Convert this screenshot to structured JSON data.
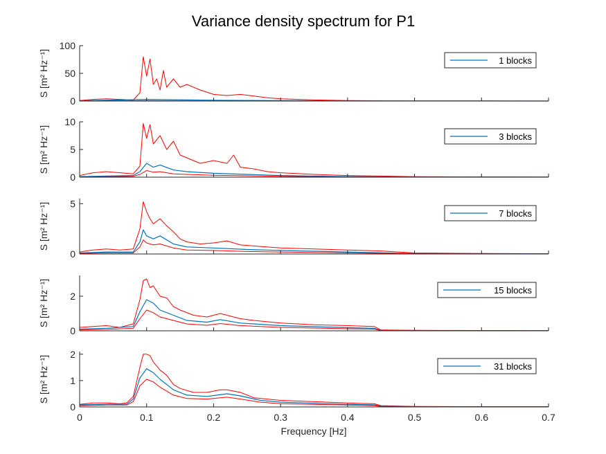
{
  "figure": {
    "title": "Variance density spectrum for P1",
    "xlabel": "Frequency [Hz]"
  },
  "colors": {
    "ci": "#ff0000",
    "mean": "#0072bd",
    "axis": "#262626",
    "background": "#ffffff"
  },
  "chart_data": [
    {
      "type": "line",
      "ylabel": "S [m² Hz⁻¹]",
      "legend": "1 blocks",
      "legend_position": "top-right",
      "xlim": [
        0,
        0.7
      ],
      "ylim": [
        0,
        100
      ],
      "yticks": [
        0,
        50,
        100
      ],
      "xticks": [
        0,
        0.1,
        0.2,
        0.3,
        0.4,
        0.5,
        0.6,
        0.7
      ],
      "xtick_labels_shown": false,
      "series": [
        {
          "role": "upper-ci",
          "color": "#ff0000",
          "x": [
            0,
            0.02,
            0.04,
            0.06,
            0.08,
            0.09,
            0.095,
            0.1,
            0.105,
            0.11,
            0.115,
            0.12,
            0.125,
            0.13,
            0.14,
            0.15,
            0.16,
            0.18,
            0.2,
            0.22,
            0.24,
            0.26,
            0.28,
            0.3,
            0.35,
            0.4,
            0.45,
            0.5,
            0.6,
            0.7
          ],
          "y": [
            1,
            3,
            4,
            3,
            2,
            15,
            80,
            45,
            76,
            30,
            40,
            20,
            55,
            25,
            40,
            25,
            30,
            20,
            12,
            10,
            12,
            9,
            6,
            4,
            2,
            1,
            0.5,
            0.3,
            0.2,
            0.1
          ]
        },
        {
          "role": "mean",
          "color": "#0072bd",
          "x": [
            0,
            0.1,
            0.2,
            0.3,
            0.4,
            0.5,
            0.6,
            0.7
          ],
          "y": [
            0.5,
            3,
            1.5,
            0.8,
            0.4,
            0.2,
            0.1,
            0.05
          ]
        },
        {
          "role": "lower-ci",
          "color": "#ff0000",
          "x": [
            0,
            0.1,
            0.2,
            0.3,
            0.4,
            0.5,
            0.6,
            0.7
          ],
          "y": [
            0.2,
            0.6,
            0.3,
            0.2,
            0.1,
            0.05,
            0.02,
            0.01
          ]
        }
      ]
    },
    {
      "type": "line",
      "ylabel": "S [m² Hz⁻¹]",
      "legend": "3 blocks",
      "legend_position": "top-right",
      "xlim": [
        0,
        0.7
      ],
      "ylim": [
        0,
        10
      ],
      "yticks": [
        0,
        5,
        10
      ],
      "xticks": [
        0,
        0.1,
        0.2,
        0.3,
        0.4,
        0.5,
        0.6,
        0.7
      ],
      "xtick_labels_shown": false,
      "series": [
        {
          "role": "upper-ci",
          "color": "#ff0000",
          "x": [
            0,
            0.02,
            0.04,
            0.06,
            0.08,
            0.09,
            0.095,
            0.1,
            0.105,
            0.11,
            0.12,
            0.13,
            0.14,
            0.15,
            0.16,
            0.18,
            0.2,
            0.22,
            0.23,
            0.24,
            0.26,
            0.28,
            0.3,
            0.35,
            0.4,
            0.45,
            0.5,
            0.6,
            0.7
          ],
          "y": [
            0.3,
            0.8,
            1,
            0.8,
            0.6,
            2,
            9.7,
            7,
            9.5,
            6,
            7.5,
            5,
            6.5,
            4,
            3.5,
            2.5,
            3,
            2.5,
            4,
            1.8,
            1.5,
            1,
            0.8,
            0.5,
            0.3,
            0.2,
            0.1,
            0.05,
            0.03
          ]
        },
        {
          "role": "mean",
          "color": "#0072bd",
          "x": [
            0,
            0.04,
            0.08,
            0.09,
            0.1,
            0.11,
            0.12,
            0.14,
            0.16,
            0.2,
            0.25,
            0.3,
            0.4,
            0.5,
            0.7
          ],
          "y": [
            0.1,
            0.2,
            0.3,
            1,
            2.5,
            1.8,
            2.2,
            1.3,
            1,
            0.7,
            0.5,
            0.3,
            0.1,
            0.05,
            0.02
          ]
        },
        {
          "role": "lower-ci",
          "color": "#ff0000",
          "x": [
            0,
            0.04,
            0.08,
            0.09,
            0.1,
            0.11,
            0.12,
            0.14,
            0.16,
            0.2,
            0.25,
            0.3,
            0.4,
            0.5,
            0.7
          ],
          "y": [
            0.05,
            0.1,
            0.15,
            0.5,
            1.2,
            0.9,
            1,
            0.6,
            0.5,
            0.35,
            0.25,
            0.15,
            0.05,
            0.02,
            0.01
          ]
        }
      ]
    },
    {
      "type": "line",
      "ylabel": "S [m² Hz⁻¹]",
      "legend": "7 blocks",
      "legend_position": "top-right",
      "xlim": [
        0,
        0.7
      ],
      "ylim": [
        0,
        5.5
      ],
      "yticks": [
        0,
        5
      ],
      "xticks": [
        0,
        0.1,
        0.2,
        0.3,
        0.4,
        0.5,
        0.6,
        0.7
      ],
      "xtick_labels_shown": false,
      "series": [
        {
          "role": "upper-ci",
          "color": "#ff0000",
          "x": [
            0,
            0.02,
            0.04,
            0.06,
            0.08,
            0.09,
            0.095,
            0.1,
            0.105,
            0.11,
            0.12,
            0.13,
            0.14,
            0.15,
            0.16,
            0.18,
            0.2,
            0.22,
            0.24,
            0.26,
            0.3,
            0.35,
            0.4,
            0.45,
            0.5,
            0.6,
            0.7
          ],
          "y": [
            0.2,
            0.4,
            0.5,
            0.4,
            0.5,
            2.5,
            5.2,
            4.2,
            3.5,
            3,
            3.5,
            2.8,
            2.2,
            1.5,
            1.2,
            1,
            1.1,
            1.3,
            0.9,
            0.8,
            0.6,
            0.5,
            0.4,
            0.3,
            0.1,
            0.05,
            0.03
          ]
        },
        {
          "role": "mean",
          "color": "#0072bd",
          "x": [
            0,
            0.04,
            0.08,
            0.09,
            0.095,
            0.1,
            0.11,
            0.12,
            0.14,
            0.16,
            0.2,
            0.25,
            0.3,
            0.4,
            0.5,
            0.7
          ],
          "y": [
            0.1,
            0.2,
            0.2,
            1.2,
            2.4,
            1.8,
            1.5,
            1.8,
            1,
            0.7,
            0.6,
            0.45,
            0.35,
            0.2,
            0.05,
            0.02
          ]
        },
        {
          "role": "lower-ci",
          "color": "#ff0000",
          "x": [
            0,
            0.04,
            0.08,
            0.09,
            0.095,
            0.1,
            0.11,
            0.12,
            0.14,
            0.16,
            0.2,
            0.25,
            0.3,
            0.4,
            0.5,
            0.7
          ],
          "y": [
            0.05,
            0.1,
            0.1,
            0.7,
            1.4,
            1.1,
            0.9,
            1,
            0.6,
            0.4,
            0.35,
            0.25,
            0.2,
            0.1,
            0.03,
            0.01
          ]
        }
      ]
    },
    {
      "type": "line",
      "ylabel": "S [m² Hz⁻¹]",
      "legend": "15 blocks",
      "legend_position": "top-right",
      "xlim": [
        0,
        0.7
      ],
      "ylim": [
        0,
        3.2
      ],
      "yticks": [
        0,
        2
      ],
      "xticks": [
        0,
        0.1,
        0.2,
        0.3,
        0.4,
        0.5,
        0.6,
        0.7
      ],
      "xtick_labels_shown": false,
      "series": [
        {
          "role": "upper-ci",
          "color": "#ff0000",
          "x": [
            0,
            0.02,
            0.04,
            0.06,
            0.08,
            0.09,
            0.095,
            0.1,
            0.105,
            0.11,
            0.12,
            0.13,
            0.14,
            0.15,
            0.17,
            0.19,
            0.21,
            0.22,
            0.24,
            0.26,
            0.3,
            0.35,
            0.4,
            0.44,
            0.45,
            0.5,
            0.6,
            0.7
          ],
          "y": [
            0.2,
            0.25,
            0.3,
            0.2,
            0.4,
            1.8,
            2.9,
            3,
            2.5,
            2.6,
            2,
            1.9,
            1.4,
            1.2,
            0.9,
            0.8,
            1,
            0.9,
            0.7,
            0.6,
            0.45,
            0.35,
            0.3,
            0.25,
            0.05,
            0.03,
            0.02,
            0.01
          ]
        },
        {
          "role": "mean",
          "color": "#0072bd",
          "x": [
            0,
            0.04,
            0.08,
            0.09,
            0.1,
            0.11,
            0.12,
            0.14,
            0.16,
            0.19,
            0.21,
            0.24,
            0.3,
            0.4,
            0.44,
            0.45,
            0.5,
            0.7
          ],
          "y": [
            0.1,
            0.15,
            0.25,
            1.1,
            1.8,
            1.6,
            1.2,
            0.9,
            0.6,
            0.5,
            0.65,
            0.45,
            0.3,
            0.18,
            0.15,
            0.02,
            0.01,
            0.01
          ]
        },
        {
          "role": "lower-ci",
          "color": "#ff0000",
          "x": [
            0,
            0.04,
            0.08,
            0.09,
            0.1,
            0.11,
            0.12,
            0.14,
            0.16,
            0.19,
            0.21,
            0.24,
            0.3,
            0.4,
            0.44,
            0.45,
            0.5,
            0.7
          ],
          "y": [
            0.05,
            0.08,
            0.15,
            0.7,
            1.2,
            1.05,
            0.8,
            0.6,
            0.4,
            0.32,
            0.42,
            0.3,
            0.2,
            0.12,
            0.1,
            0.01,
            0.01,
            0.01
          ]
        }
      ]
    },
    {
      "type": "line",
      "ylabel": "S [m² Hz⁻¹]",
      "legend": "31 blocks",
      "legend_position": "top-right",
      "xlim": [
        0,
        0.7
      ],
      "ylim": [
        0,
        2.1
      ],
      "yticks": [
        0,
        1,
        2
      ],
      "xticks": [
        0,
        0.1,
        0.2,
        0.3,
        0.4,
        0.5,
        0.6,
        0.7
      ],
      "xtick_labels": [
        "0",
        "0.1",
        "0.2",
        "0.3",
        "0.4",
        "0.5",
        "0.6",
        "0.7"
      ],
      "xtick_labels_shown": true,
      "series": [
        {
          "role": "upper-ci",
          "color": "#ff0000",
          "x": [
            0,
            0.02,
            0.04,
            0.06,
            0.07,
            0.08,
            0.09,
            0.095,
            0.1,
            0.105,
            0.11,
            0.12,
            0.13,
            0.14,
            0.15,
            0.17,
            0.19,
            0.21,
            0.22,
            0.24,
            0.26,
            0.28,
            0.3,
            0.35,
            0.4,
            0.44,
            0.45,
            0.5,
            0.6,
            0.7
          ],
          "y": [
            0.1,
            0.15,
            0.15,
            0.12,
            0.15,
            0.4,
            1.5,
            2,
            2,
            1.95,
            1.7,
            1.4,
            1.2,
            0.85,
            0.7,
            0.55,
            0.55,
            0.65,
            0.65,
            0.55,
            0.35,
            0.3,
            0.25,
            0.2,
            0.15,
            0.12,
            0.05,
            0.02,
            0.01,
            0.01
          ]
        },
        {
          "role": "mean",
          "color": "#0072bd",
          "x": [
            0,
            0.04,
            0.07,
            0.08,
            0.09,
            0.1,
            0.11,
            0.12,
            0.14,
            0.16,
            0.19,
            0.22,
            0.24,
            0.27,
            0.3,
            0.4,
            0.44,
            0.45,
            0.5,
            0.7
          ],
          "y": [
            0.08,
            0.1,
            0.1,
            0.3,
            1.1,
            1.45,
            1.3,
            1.05,
            0.65,
            0.45,
            0.4,
            0.5,
            0.42,
            0.25,
            0.18,
            0.1,
            0.08,
            0.03,
            0.01,
            0.01
          ]
        },
        {
          "role": "lower-ci",
          "color": "#ff0000",
          "x": [
            0,
            0.04,
            0.07,
            0.08,
            0.09,
            0.1,
            0.11,
            0.12,
            0.14,
            0.16,
            0.19,
            0.22,
            0.24,
            0.27,
            0.3,
            0.4,
            0.44,
            0.45,
            0.5,
            0.7
          ],
          "y": [
            0.05,
            0.07,
            0.07,
            0.2,
            0.8,
            1.05,
            0.95,
            0.75,
            0.45,
            0.32,
            0.3,
            0.37,
            0.3,
            0.18,
            0.12,
            0.07,
            0.05,
            0.02,
            0.01,
            0.01
          ]
        }
      ]
    }
  ]
}
